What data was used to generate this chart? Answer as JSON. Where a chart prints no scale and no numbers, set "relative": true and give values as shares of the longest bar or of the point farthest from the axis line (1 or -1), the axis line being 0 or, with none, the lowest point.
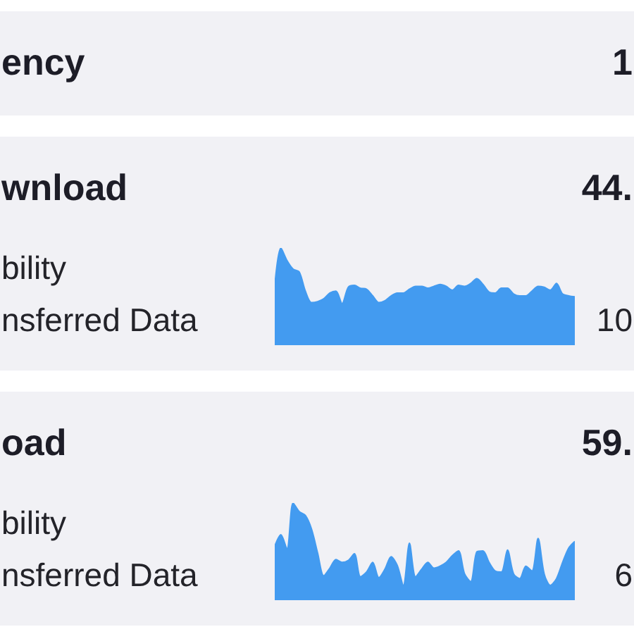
{
  "chart_data": [
    {
      "type": "other",
      "title": "ency",
      "annotations": [
        "1"
      ]
    },
    {
      "type": "area",
      "title": "wnload",
      "annotations": [
        "44.",
        "bility",
        "nsferred Data",
        "10"
      ],
      "relative": true,
      "color": "#439bf0",
      "categories": [
        null,
        null,
        null,
        null,
        null,
        null,
        null,
        null,
        null,
        null,
        null,
        null,
        null,
        null,
        null,
        null,
        null,
        null,
        null,
        null,
        null,
        null,
        null,
        null,
        null,
        null,
        null,
        null,
        null,
        null,
        null,
        null,
        null,
        null,
        null,
        null,
        null,
        null,
        null,
        null,
        null,
        null,
        null,
        null,
        null,
        null,
        null,
        null,
        null,
        null
      ],
      "values": [
        0.6,
        1,
        0.87,
        0.78,
        0.75,
        0.55,
        0.43,
        0.44,
        0.47,
        0.53,
        0.55,
        0.42,
        0.59,
        0.61,
        0.58,
        0.57,
        0.5,
        0.43,
        0.45,
        0.5,
        0.53,
        0.53,
        0.57,
        0.6,
        0.6,
        0.58,
        0.6,
        0.62,
        0.6,
        0.56,
        0.61,
        0.6,
        0.63,
        0.68,
        0.62,
        0.54,
        0.53,
        0.58,
        0.58,
        0.52,
        0.5,
        0.5,
        0.55,
        0.6,
        0.59,
        0.56,
        0.63,
        0.52,
        0.5,
        0.49
      ]
    },
    {
      "type": "area",
      "title": "oad",
      "annotations": [
        "59.",
        "bility",
        "nsferred Data",
        "6"
      ],
      "relative": true,
      "color": "#439bf0",
      "categories": [
        null,
        null,
        null,
        null,
        null,
        null,
        null,
        null,
        null,
        null,
        null,
        null,
        null,
        null,
        null,
        null,
        null,
        null,
        null,
        null,
        null,
        null,
        null,
        null,
        null,
        null,
        null,
        null,
        null,
        null,
        null,
        null,
        null,
        null,
        null,
        null,
        null,
        null,
        null,
        null,
        null,
        null,
        null,
        null,
        null,
        null,
        null,
        null,
        null,
        null
      ],
      "values": [
        0.55,
        0.67,
        0.52,
        1,
        0.91,
        0.87,
        0.73,
        0.48,
        0.24,
        0.32,
        0.41,
        0.38,
        0.4,
        0.47,
        0.23,
        0.28,
        0.38,
        0.22,
        0.31,
        0.44,
        0.35,
        0.14,
        0.58,
        0.23,
        0.31,
        0.38,
        0.32,
        0.34,
        0.38,
        0.45,
        0.5,
        0.26,
        0.18,
        0.49,
        0.5,
        0.38,
        0.29,
        0.28,
        0.51,
        0.26,
        0.21,
        0.34,
        0.29,
        0.63,
        0.26,
        0.14,
        0.21,
        0.38,
        0.53,
        0.6
      ]
    }
  ]
}
